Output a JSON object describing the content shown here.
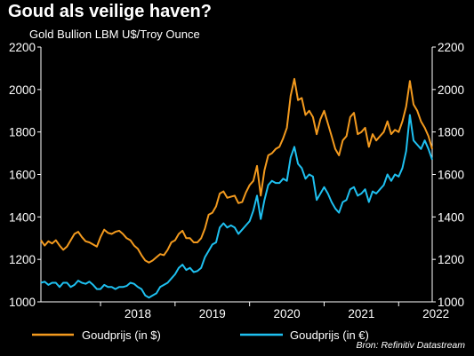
{
  "chart_data": {
    "type": "line",
    "title": "Goud als veilige haven?",
    "subtitle": "Gold Bullion LBM U$/Troy Ounce",
    "ylim": [
      1000,
      2200
    ],
    "yticks": [
      1000,
      1200,
      1400,
      1600,
      1800,
      2000,
      2200
    ],
    "xlim": [
      2017.2,
      2022.45
    ],
    "xtick_labels": [
      "2018",
      "2019",
      "2020",
      "2021",
      "2022"
    ],
    "xtick_positions": [
      2018,
      2019,
      2020,
      2021,
      2022
    ],
    "grid": false,
    "legend_placement": "bottom",
    "source": "Bron: Refinitiv Datastream",
    "series": [
      {
        "name": "Goudprijs (in $)",
        "color": "#f39a1e",
        "points": [
          [
            2017.2,
            1290
          ],
          [
            2017.25,
            1265
          ],
          [
            2017.3,
            1285
          ],
          [
            2017.35,
            1275
          ],
          [
            2017.4,
            1290
          ],
          [
            2017.45,
            1265
          ],
          [
            2017.5,
            1245
          ],
          [
            2017.55,
            1260
          ],
          [
            2017.6,
            1290
          ],
          [
            2017.65,
            1320
          ],
          [
            2017.7,
            1330
          ],
          [
            2017.75,
            1305
          ],
          [
            2017.8,
            1285
          ],
          [
            2017.85,
            1280
          ],
          [
            2017.9,
            1270
          ],
          [
            2017.95,
            1260
          ],
          [
            2018.0,
            1305
          ],
          [
            2018.05,
            1340
          ],
          [
            2018.1,
            1325
          ],
          [
            2018.15,
            1320
          ],
          [
            2018.2,
            1330
          ],
          [
            2018.25,
            1335
          ],
          [
            2018.3,
            1320
          ],
          [
            2018.35,
            1300
          ],
          [
            2018.4,
            1290
          ],
          [
            2018.45,
            1265
          ],
          [
            2018.5,
            1250
          ],
          [
            2018.55,
            1220
          ],
          [
            2018.6,
            1195
          ],
          [
            2018.65,
            1185
          ],
          [
            2018.7,
            1195
          ],
          [
            2018.75,
            1210
          ],
          [
            2018.8,
            1225
          ],
          [
            2018.85,
            1220
          ],
          [
            2018.9,
            1245
          ],
          [
            2018.95,
            1280
          ],
          [
            2019.0,
            1290
          ],
          [
            2019.05,
            1320
          ],
          [
            2019.1,
            1335
          ],
          [
            2019.15,
            1300
          ],
          [
            2019.2,
            1300
          ],
          [
            2019.25,
            1280
          ],
          [
            2019.3,
            1280
          ],
          [
            2019.35,
            1300
          ],
          [
            2019.4,
            1345
          ],
          [
            2019.45,
            1410
          ],
          [
            2019.5,
            1420
          ],
          [
            2019.55,
            1450
          ],
          [
            2019.6,
            1510
          ],
          [
            2019.65,
            1520
          ],
          [
            2019.7,
            1490
          ],
          [
            2019.75,
            1495
          ],
          [
            2019.8,
            1500
          ],
          [
            2019.85,
            1465
          ],
          [
            2019.9,
            1470
          ],
          [
            2019.95,
            1515
          ],
          [
            2020.0,
            1550
          ],
          [
            2020.05,
            1570
          ],
          [
            2020.1,
            1640
          ],
          [
            2020.15,
            1500
          ],
          [
            2020.2,
            1620
          ],
          [
            2020.25,
            1690
          ],
          [
            2020.3,
            1700
          ],
          [
            2020.35,
            1720
          ],
          [
            2020.4,
            1730
          ],
          [
            2020.45,
            1770
          ],
          [
            2020.5,
            1820
          ],
          [
            2020.55,
            1970
          ],
          [
            2020.6,
            2050
          ],
          [
            2020.65,
            1950
          ],
          [
            2020.7,
            1960
          ],
          [
            2020.75,
            1880
          ],
          [
            2020.8,
            1900
          ],
          [
            2020.85,
            1870
          ],
          [
            2020.9,
            1790
          ],
          [
            2020.95,
            1860
          ],
          [
            2021.0,
            1900
          ],
          [
            2021.05,
            1840
          ],
          [
            2021.1,
            1780
          ],
          [
            2021.15,
            1720
          ],
          [
            2021.2,
            1690
          ],
          [
            2021.25,
            1760
          ],
          [
            2021.3,
            1780
          ],
          [
            2021.35,
            1870
          ],
          [
            2021.4,
            1890
          ],
          [
            2021.45,
            1790
          ],
          [
            2021.5,
            1800
          ],
          [
            2021.55,
            1820
          ],
          [
            2021.6,
            1730
          ],
          [
            2021.65,
            1790
          ],
          [
            2021.7,
            1760
          ],
          [
            2021.75,
            1780
          ],
          [
            2021.8,
            1800
          ],
          [
            2021.85,
            1850
          ],
          [
            2021.9,
            1790
          ],
          [
            2021.95,
            1810
          ],
          [
            2022.0,
            1800
          ],
          [
            2022.05,
            1850
          ],
          [
            2022.1,
            1920
          ],
          [
            2022.15,
            2040
          ],
          [
            2022.2,
            1930
          ],
          [
            2022.25,
            1900
          ],
          [
            2022.3,
            1850
          ],
          [
            2022.35,
            1820
          ],
          [
            2022.4,
            1780
          ],
          [
            2022.45,
            1720
          ]
        ]
      },
      {
        "name": "Goudprijs (in €)",
        "color": "#1ec0f0",
        "points": [
          [
            2017.2,
            1090
          ],
          [
            2017.25,
            1095
          ],
          [
            2017.3,
            1080
          ],
          [
            2017.35,
            1090
          ],
          [
            2017.4,
            1090
          ],
          [
            2017.45,
            1070
          ],
          [
            2017.5,
            1090
          ],
          [
            2017.55,
            1090
          ],
          [
            2017.6,
            1070
          ],
          [
            2017.65,
            1080
          ],
          [
            2017.7,
            1100
          ],
          [
            2017.75,
            1090
          ],
          [
            2017.8,
            1085
          ],
          [
            2017.85,
            1095
          ],
          [
            2017.9,
            1080
          ],
          [
            2017.95,
            1060
          ],
          [
            2018.0,
            1060
          ],
          [
            2018.05,
            1080
          ],
          [
            2018.1,
            1070
          ],
          [
            2018.15,
            1070
          ],
          [
            2018.2,
            1060
          ],
          [
            2018.25,
            1070
          ],
          [
            2018.3,
            1070
          ],
          [
            2018.35,
            1075
          ],
          [
            2018.4,
            1090
          ],
          [
            2018.45,
            1085
          ],
          [
            2018.5,
            1070
          ],
          [
            2018.55,
            1060
          ],
          [
            2018.6,
            1030
          ],
          [
            2018.65,
            1020
          ],
          [
            2018.7,
            1030
          ],
          [
            2018.75,
            1040
          ],
          [
            2018.8,
            1070
          ],
          [
            2018.85,
            1080
          ],
          [
            2018.9,
            1090
          ],
          [
            2018.95,
            1110
          ],
          [
            2019.0,
            1130
          ],
          [
            2019.05,
            1160
          ],
          [
            2019.1,
            1175
          ],
          [
            2019.15,
            1150
          ],
          [
            2019.2,
            1160
          ],
          [
            2019.25,
            1140
          ],
          [
            2019.3,
            1145
          ],
          [
            2019.35,
            1160
          ],
          [
            2019.4,
            1210
          ],
          [
            2019.45,
            1240
          ],
          [
            2019.5,
            1270
          ],
          [
            2019.55,
            1280
          ],
          [
            2019.6,
            1350
          ],
          [
            2019.65,
            1370
          ],
          [
            2019.7,
            1350
          ],
          [
            2019.75,
            1360
          ],
          [
            2019.8,
            1350
          ],
          [
            2019.85,
            1320
          ],
          [
            2019.9,
            1340
          ],
          [
            2019.95,
            1360
          ],
          [
            2020.0,
            1380
          ],
          [
            2020.05,
            1430
          ],
          [
            2020.1,
            1500
          ],
          [
            2020.15,
            1390
          ],
          [
            2020.2,
            1480
          ],
          [
            2020.25,
            1550
          ],
          [
            2020.3,
            1570
          ],
          [
            2020.35,
            1560
          ],
          [
            2020.4,
            1560
          ],
          [
            2020.45,
            1580
          ],
          [
            2020.5,
            1570
          ],
          [
            2020.55,
            1680
          ],
          [
            2020.6,
            1730
          ],
          [
            2020.65,
            1650
          ],
          [
            2020.7,
            1630
          ],
          [
            2020.75,
            1580
          ],
          [
            2020.8,
            1600
          ],
          [
            2020.85,
            1590
          ],
          [
            2020.9,
            1480
          ],
          [
            2020.95,
            1510
          ],
          [
            2021.0,
            1540
          ],
          [
            2021.05,
            1510
          ],
          [
            2021.1,
            1470
          ],
          [
            2021.15,
            1440
          ],
          [
            2021.2,
            1420
          ],
          [
            2021.25,
            1470
          ],
          [
            2021.3,
            1480
          ],
          [
            2021.35,
            1530
          ],
          [
            2021.4,
            1540
          ],
          [
            2021.45,
            1500
          ],
          [
            2021.5,
            1510
          ],
          [
            2021.55,
            1530
          ],
          [
            2021.6,
            1470
          ],
          [
            2021.65,
            1520
          ],
          [
            2021.7,
            1510
          ],
          [
            2021.75,
            1530
          ],
          [
            2021.8,
            1550
          ],
          [
            2021.85,
            1600
          ],
          [
            2021.9,
            1570
          ],
          [
            2021.95,
            1600
          ],
          [
            2022.0,
            1590
          ],
          [
            2022.05,
            1630
          ],
          [
            2022.1,
            1710
          ],
          [
            2022.15,
            1880
          ],
          [
            2022.2,
            1760
          ],
          [
            2022.25,
            1740
          ],
          [
            2022.3,
            1720
          ],
          [
            2022.35,
            1760
          ],
          [
            2022.4,
            1720
          ],
          [
            2022.45,
            1670
          ]
        ]
      }
    ]
  }
}
